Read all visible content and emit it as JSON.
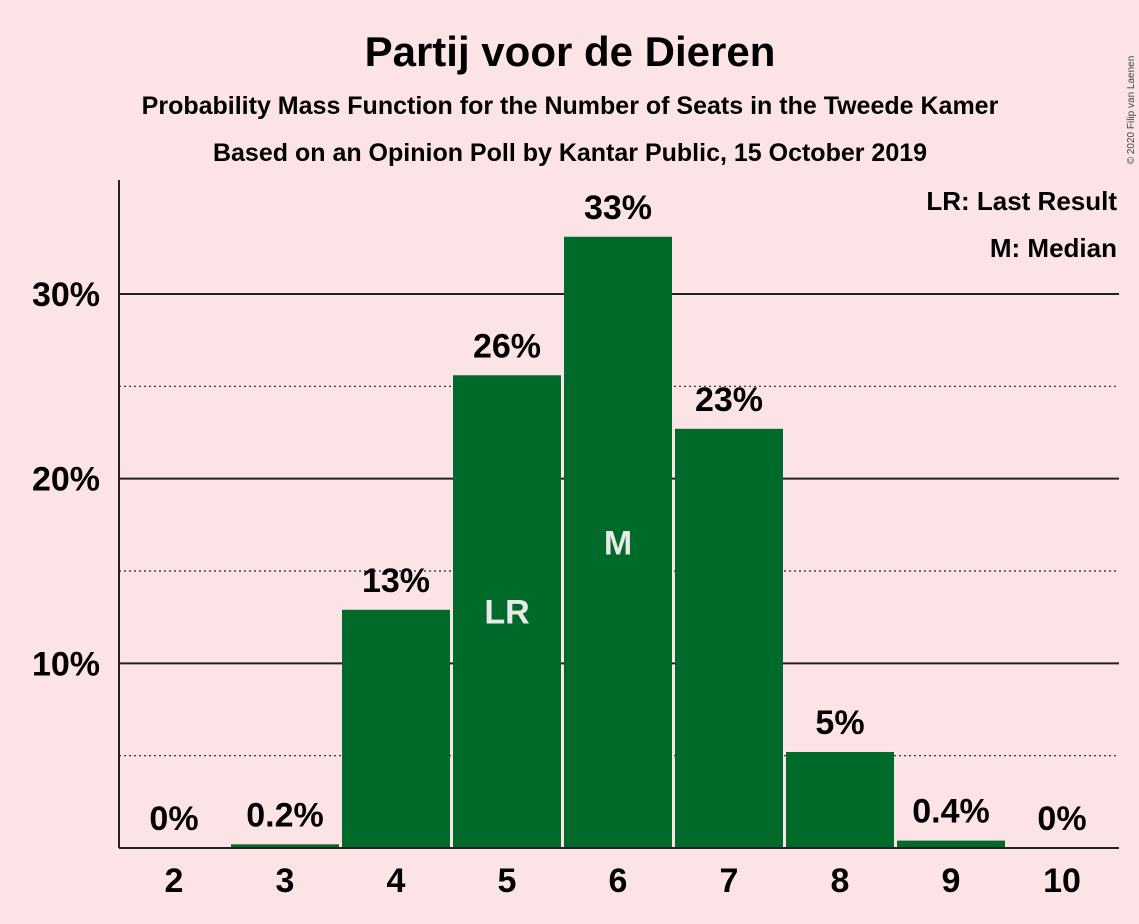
{
  "chart_data": {
    "type": "bar",
    "title": "Partij voor de Dieren",
    "subtitle": "Probability Mass Function for the Number of Seats in the Tweede Kamer",
    "subtitle2": "Based on an Opinion Poll by Kantar Public, 15 October 2019",
    "categories": [
      "2",
      "3",
      "4",
      "5",
      "6",
      "7",
      "8",
      "9",
      "10"
    ],
    "values": [
      0,
      0.2,
      12.9,
      25.6,
      33.1,
      22.7,
      5.2,
      0.4,
      0
    ],
    "data_labels": [
      "0%",
      "0.2%",
      "13%",
      "26%",
      "33%",
      "23%",
      "5%",
      "0.4%",
      "0%"
    ],
    "inner_labels": [
      "",
      "",
      "",
      "LR",
      "M",
      "",
      "",
      "",
      ""
    ],
    "y_ticks": [
      10,
      20,
      30
    ],
    "y_tick_labels": [
      "10%",
      "20%",
      "30%"
    ],
    "y_minor_ticks": [
      5,
      15,
      25
    ],
    "ylim": [
      0,
      36
    ],
    "bar_color": "#006a2a",
    "legend": [
      "LR: Last Result",
      "M: Median"
    ],
    "legend_position": "top-right",
    "copyright": "© 2020 Filip van Laenen"
  }
}
